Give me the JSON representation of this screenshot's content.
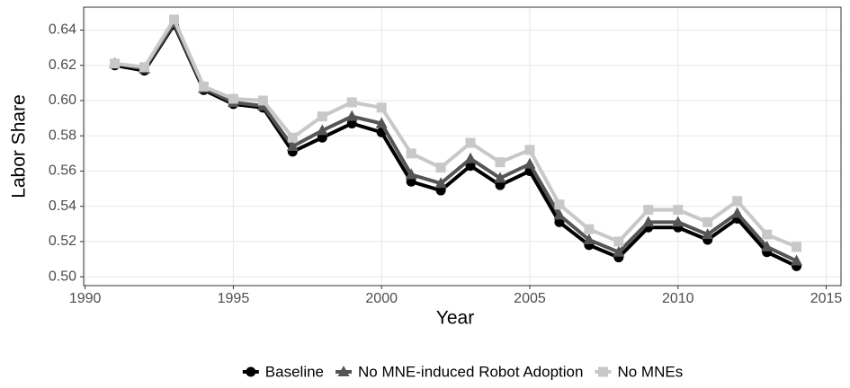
{
  "chart_data": {
    "type": "line",
    "x_label": "Year",
    "y_label": "Labor Share",
    "x": [
      1991,
      1992,
      1993,
      1994,
      1995,
      1996,
      1997,
      1998,
      1999,
      2000,
      2001,
      2002,
      2003,
      2004,
      2005,
      2006,
      2007,
      2008,
      2009,
      2010,
      2011,
      2012,
      2013,
      2014
    ],
    "series": [
      {
        "name": "Baseline",
        "color": "#000000",
        "marker": "circle",
        "values": [
          0.62,
          0.617,
          0.643,
          0.606,
          0.598,
          0.596,
          0.571,
          0.579,
          0.587,
          0.582,
          0.554,
          0.549,
          0.563,
          0.552,
          0.56,
          0.531,
          0.518,
          0.511,
          0.528,
          0.528,
          0.521,
          0.533,
          0.514,
          0.506
        ]
      },
      {
        "name": "No MNE-induced Robot Adoption",
        "color": "#555555",
        "marker": "triangle",
        "values": [
          0.621,
          0.618,
          0.644,
          0.607,
          0.599,
          0.597,
          0.574,
          0.583,
          0.591,
          0.587,
          0.558,
          0.553,
          0.567,
          0.556,
          0.564,
          0.535,
          0.521,
          0.514,
          0.531,
          0.531,
          0.524,
          0.536,
          0.517,
          0.509
        ]
      },
      {
        "name": "No MNEs",
        "color": "#c8c8c8",
        "marker": "square",
        "values": [
          0.621,
          0.619,
          0.646,
          0.608,
          0.601,
          0.6,
          0.579,
          0.591,
          0.599,
          0.596,
          0.57,
          0.562,
          0.576,
          0.565,
          0.572,
          0.541,
          0.527,
          0.52,
          0.538,
          0.538,
          0.531,
          0.543,
          0.524,
          0.517
        ]
      }
    ],
    "xlim": [
      1989.95,
      2015.5
    ],
    "xticks": [
      1990,
      1995,
      2000,
      2005,
      2010,
      2015
    ],
    "ylim": [
      0.495,
      0.653
    ],
    "yticks": [
      {
        "value": 0.5,
        "label": "0.50"
      },
      {
        "value": 0.52,
        "label": "0.52"
      },
      {
        "value": 0.54,
        "label": "0.54"
      },
      {
        "value": 0.56,
        "label": "0.56"
      },
      {
        "value": 0.58,
        "label": "0.58"
      },
      {
        "value": 0.6,
        "label": "0.60"
      },
      {
        "value": 0.62,
        "label": "0.62"
      },
      {
        "value": 0.64,
        "label": "0.64"
      }
    ],
    "grid": true,
    "legend": "bottom"
  }
}
